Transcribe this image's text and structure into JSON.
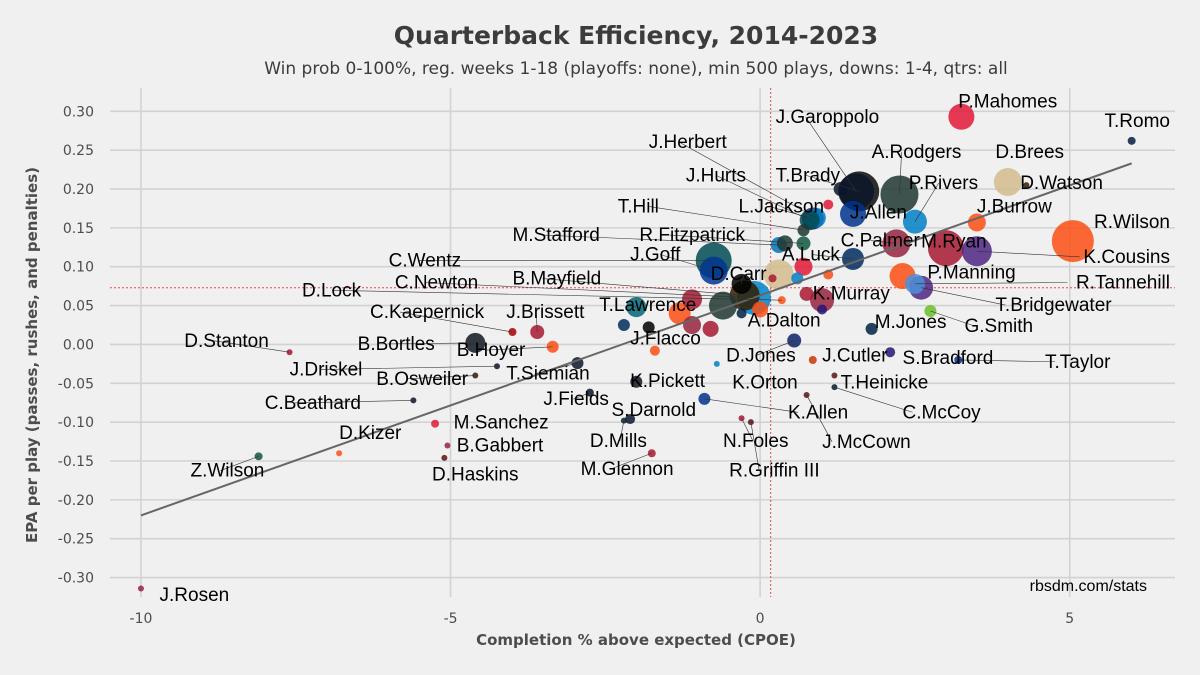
{
  "chart_data": {
    "type": "scatter",
    "title": "Quarterback Efficiency, 2014-2023",
    "subtitle": "Win prob 0-100%, reg. weeks 1-18 (playoffs: none), min 500 plays, downs: 1-4, qtrs: all",
    "xlabel": "Completion % above expected (CPOE)",
    "ylabel": "EPA per play (passes, rushes, and penalties)",
    "caption": "rbsdm.com/stats",
    "xlim": [
      -10.5,
      6.7
    ],
    "ylim": [
      -0.325,
      0.33
    ],
    "xticks": [
      -10,
      -5,
      0,
      5
    ],
    "yticks": [
      0.3,
      0.25,
      0.2,
      0.15,
      0.1,
      0.05,
      0.0,
      -0.05,
      -0.1,
      -0.15,
      -0.2,
      -0.25,
      -0.3
    ],
    "xtick_labels": [
      "-10",
      "-5",
      "0",
      "5"
    ],
    "ytick_labels": [
      "0.30",
      "0.25",
      "0.20",
      "0.15",
      "0.10",
      "0.05",
      "0.00",
      "-0.05",
      "-0.10",
      "-0.15",
      "-0.20",
      "-0.25",
      "-0.30"
    ],
    "reference_lines": {
      "x": 0.17,
      "y": 0.073,
      "color": "#e34a4a"
    },
    "trend_line": {
      "x": [
        -10,
        6
      ],
      "y": [
        -0.22,
        0.233
      ],
      "color": "#666666"
    },
    "points": [
      {
        "name": "P.Mahomes",
        "x": 3.25,
        "y": 0.293,
        "size": 13,
        "color": "#e31837",
        "label_x": 3.2,
        "label_y": 0.305
      },
      {
        "name": "T.Romo",
        "x": 6.0,
        "y": 0.262,
        "size": 4,
        "color": "#041e42",
        "label_x": 5.6,
        "label_y": 0.28
      },
      {
        "name": "J.Garoppolo",
        "x": 1.55,
        "y": 0.197,
        "size": 18,
        "color": "#0b162a",
        "label_x": 0.25,
        "label_y": 0.285
      },
      {
        "name": "A.Rodgers",
        "x": 2.25,
        "y": 0.193,
        "size": 19,
        "color": "#203731",
        "label_x": 1.8,
        "label_y": 0.24
      },
      {
        "name": "D.Brees",
        "x": 4.0,
        "y": 0.209,
        "size": 14,
        "color": "#d3bc8d",
        "label_x": 3.8,
        "label_y": 0.24
      },
      {
        "name": "D.Watson",
        "x": 4.3,
        "y": 0.205,
        "size": 3,
        "color": "#311d00",
        "label_x": 4.2,
        "label_y": 0.2
      },
      {
        "name": "J.Herbert",
        "x": 0.9,
        "y": 0.163,
        "size": 10,
        "color": "#0080c6",
        "label_x": -1.8,
        "label_y": 0.253
      },
      {
        "name": "T.Brady",
        "x": 1.6,
        "y": 0.197,
        "size": 20,
        "color": "#0a0a0a",
        "label_x": 0.25,
        "label_y": 0.21
      },
      {
        "name": "P.Rivers",
        "x": 2.5,
        "y": 0.158,
        "size": 12,
        "color": "#0080c6",
        "label_x": 2.4,
        "label_y": 0.2
      },
      {
        "name": "J.Hurts",
        "x": 0.8,
        "y": 0.16,
        "size": 10,
        "color": "#004c54",
        "label_x": -1.2,
        "label_y": 0.21
      },
      {
        "name": "L.Jackson",
        "x": 0.85,
        "y": 0.162,
        "size": 11,
        "color": "#241773",
        "label_x": -0.35,
        "label_y": 0.17
      },
      {
        "name": "J.Allen",
        "x": 1.5,
        "y": 0.168,
        "size": 13,
        "color": "#00338d",
        "label_x": 1.45,
        "label_y": 0.162
      },
      {
        "name": "J.Burrow",
        "x": 3.5,
        "y": 0.157,
        "size": 9,
        "color": "#fb4f14",
        "label_x": 3.5,
        "label_y": 0.17
      },
      {
        "name": "T.Hill",
        "x": 0.7,
        "y": 0.147,
        "size": 6,
        "color": "#203731",
        "label_x": -2.3,
        "label_y": 0.17
      },
      {
        "name": "R.Wilson",
        "x": 5.05,
        "y": 0.133,
        "size": 21,
        "color": "#fb4f14",
        "label_x": 5.0,
        "label_y": 0.15
      },
      {
        "name": "M.Stafford",
        "x": 0.3,
        "y": 0.128,
        "size": 8,
        "color": "#0076b6",
        "label_x": -4.0,
        "label_y": 0.133
      },
      {
        "name": "R.Fitzpatrick",
        "x": 0.7,
        "y": 0.13,
        "size": 7,
        "color": "#125740",
        "label_x": -1.95,
        "label_y": 0.133
      },
      {
        "name": "C.Palmer",
        "x": 2.2,
        "y": 0.13,
        "size": 14,
        "color": "#97233f",
        "label_x": 1.3,
        "label_y": 0.126
      },
      {
        "name": "M.Ryan",
        "x": 3.0,
        "y": 0.124,
        "size": 18,
        "color": "#a71930",
        "label_x": 2.6,
        "label_y": 0.125
      },
      {
        "name": "C.Wentz",
        "x": -0.75,
        "y": 0.108,
        "size": 18,
        "color": "#004c54",
        "label_x": -6.0,
        "label_y": 0.1
      },
      {
        "name": "K.Cousins",
        "x": 3.5,
        "y": 0.12,
        "size": 15,
        "color": "#4f2683",
        "label_x": 5.0,
        "label_y": 0.105
      },
      {
        "name": "A.Luck",
        "x": 1.5,
        "y": 0.11,
        "size": 11,
        "color": "#002c5f",
        "label_x": 0.35,
        "label_y": 0.108
      },
      {
        "name": "J.Goff",
        "x": -0.75,
        "y": 0.095,
        "size": 14,
        "color": "#003594",
        "label_x": -2.1,
        "label_y": 0.108
      },
      {
        "name": "D.Carr",
        "x": -0.3,
        "y": 0.078,
        "size": 10,
        "color": "#000000",
        "label_x": -0.8,
        "label_y": 0.083
      },
      {
        "name": "P.Manning",
        "x": 2.3,
        "y": 0.088,
        "size": 13,
        "color": "#fb4f14",
        "label_x": 2.7,
        "label_y": 0.085
      },
      {
        "name": "R.Tannehill",
        "x": 2.5,
        "y": 0.078,
        "size": 10,
        "color": "#4b92db",
        "label_x": 4.8,
        "label_y": 0.072
      },
      {
        "name": "C.Newton",
        "x": -0.1,
        "y": 0.06,
        "size": 17,
        "color": "#0085ca",
        "label_x": -5.9,
        "label_y": 0.072
      },
      {
        "name": "B.Mayfield",
        "x": -0.25,
        "y": 0.063,
        "size": 15,
        "color": "#311d00",
        "label_x": -4.0,
        "label_y": 0.077
      },
      {
        "name": "D.Lock",
        "x": 0.35,
        "y": 0.057,
        "size": 4,
        "color": "#fb4f14",
        "label_x": -7.4,
        "label_y": 0.062
      },
      {
        "name": "K.Murray",
        "x": 1.0,
        "y": 0.057,
        "size": 12,
        "color": "#97233f",
        "label_x": 0.85,
        "label_y": 0.058
      },
      {
        "name": "T.Bridgewater",
        "x": 2.6,
        "y": 0.073,
        "size": 12,
        "color": "#4f2683",
        "label_x": 3.8,
        "label_y": 0.043
      },
      {
        "name": "C.Kaepernick",
        "x": -4.0,
        "y": 0.016,
        "size": 4,
        "color": "#aa0000",
        "label_x": -6.3,
        "label_y": 0.034
      },
      {
        "name": "J.Brissett",
        "x": -3.6,
        "y": 0.016,
        "size": 7,
        "color": "#a71930",
        "label_x": -4.1,
        "label_y": 0.034
      },
      {
        "name": "T.Lawrence",
        "x": -2.0,
        "y": 0.048,
        "size": 10,
        "color": "#006778",
        "label_x": -2.6,
        "label_y": 0.043
      },
      {
        "name": "A.Dalton",
        "x": 0.0,
        "y": 0.045,
        "size": 8,
        "color": "#fb4f14",
        "label_x": -0.2,
        "label_y": 0.023
      },
      {
        "name": "G.Smith",
        "x": 2.75,
        "y": 0.043,
        "size": 6,
        "color": "#69be28",
        "label_x": 3.3,
        "label_y": 0.016
      },
      {
        "name": "M.Jones",
        "x": 1.8,
        "y": 0.02,
        "size": 6,
        "color": "#002244",
        "label_x": 1.85,
        "label_y": 0.021
      },
      {
        "name": "D.Stanton",
        "x": -7.6,
        "y": -0.01,
        "size": 3,
        "color": "#a71930",
        "label_x": -9.3,
        "label_y": -0.003
      },
      {
        "name": "B.Bortles",
        "x": -4.6,
        "y": 0.002,
        "size": 10,
        "color": "#101820",
        "label_x": -6.5,
        "label_y": -0.007
      },
      {
        "name": "B.Hoyer",
        "x": -3.35,
        "y": -0.003,
        "size": 6,
        "color": "#fb4f14",
        "label_x": -4.9,
        "label_y": -0.015
      },
      {
        "name": "J.Flacco",
        "x": -1.7,
        "y": -0.008,
        "size": 5,
        "color": "#fb4f14",
        "label_x": -2.1,
        "label_y": 0.0
      },
      {
        "name": "D.Jones",
        "x": 0.55,
        "y": 0.005,
        "size": 7,
        "color": "#0b2265",
        "label_x": -0.55,
        "label_y": -0.022
      },
      {
        "name": "J.Cutler",
        "x": 0.85,
        "y": -0.02,
        "size": 4,
        "color": "#c83803",
        "label_x": 1.0,
        "label_y": -0.022
      },
      {
        "name": "S.Bradford",
        "x": 2.1,
        "y": -0.01,
        "size": 5,
        "color": "#241773",
        "label_x": 2.3,
        "label_y": -0.025
      },
      {
        "name": "T.Taylor",
        "x": 3.2,
        "y": -0.02,
        "size": 4,
        "color": "#00338d",
        "label_x": 4.6,
        "label_y": -0.03
      },
      {
        "name": "J.Driskel",
        "x": -4.25,
        "y": -0.028,
        "size": 3,
        "color": "#0b162a",
        "label_x": -7.6,
        "label_y": -0.04
      },
      {
        "name": "T.Siemian",
        "x": -2.95,
        "y": -0.024,
        "size": 6,
        "color": "#0b162a",
        "label_x": -4.1,
        "label_y": -0.045
      },
      {
        "name": "B.Osweiler",
        "x": -4.6,
        "y": -0.04,
        "size": 3,
        "color": "#311d00",
        "label_x": -6.2,
        "label_y": -0.052
      },
      {
        "name": "K.Pickett",
        "x": -2.0,
        "y": -0.048,
        "size": 6,
        "color": "#101820",
        "label_x": -2.1,
        "label_y": -0.055
      },
      {
        "name": "K.Orton",
        "x": -0.7,
        "y": -0.025,
        "size": 3,
        "color": "#0080c6",
        "label_x": -0.45,
        "label_y": -0.057
      },
      {
        "name": "T.Heinicke",
        "x": 1.2,
        "y": -0.04,
        "size": 3,
        "color": "#5a1414",
        "label_x": 1.3,
        "label_y": -0.057
      },
      {
        "name": "C.Beathard",
        "x": -5.6,
        "y": -0.072,
        "size": 3,
        "color": "#0b162a",
        "label_x": -8.0,
        "label_y": -0.083
      },
      {
        "name": "J.Fields",
        "x": -2.75,
        "y": -0.062,
        "size": 4,
        "color": "#0b162a",
        "label_x": -3.5,
        "label_y": -0.078
      },
      {
        "name": "S.Darnold",
        "x": -2.1,
        "y": -0.096,
        "size": 5,
        "color": "#0b162a",
        "label_x": -2.4,
        "label_y": -0.092
      },
      {
        "name": "K.Allen",
        "x": -0.9,
        "y": -0.07,
        "size": 6,
        "color": "#00338d",
        "label_x": 0.45,
        "label_y": -0.095
      },
      {
        "name": "C.McCoy",
        "x": 1.2,
        "y": -0.055,
        "size": 3,
        "color": "#0b162a",
        "label_x": 2.3,
        "label_y": -0.095
      },
      {
        "name": "M.Sanchez",
        "x": -5.25,
        "y": -0.102,
        "size": 4,
        "color": "#e31837",
        "label_x": -4.95,
        "label_y": -0.108
      },
      {
        "name": "D.Kizer",
        "x": -6.8,
        "y": -0.14,
        "size": 3,
        "color": "#fb4f14",
        "label_x": -6.8,
        "label_y": -0.122
      },
      {
        "name": "D.Mills",
        "x": -2.2,
        "y": -0.098,
        "size": 3,
        "color": "#03202f",
        "label_x": -2.75,
        "label_y": -0.132
      },
      {
        "name": "N.Foles",
        "x": -0.3,
        "y": -0.095,
        "size": 3,
        "color": "#a5162f",
        "label_x": -0.6,
        "label_y": -0.132
      },
      {
        "name": "J.McCown",
        "x": 0.75,
        "y": -0.065,
        "size": 3,
        "color": "#5a1414",
        "label_x": 1.0,
        "label_y": -0.133
      },
      {
        "name": "B.Gabbert",
        "x": -5.05,
        "y": -0.13,
        "size": 3,
        "color": "#97233f",
        "label_x": -4.9,
        "label_y": -0.138
      },
      {
        "name": "Z.Wilson",
        "x": -8.1,
        "y": -0.144,
        "size": 4,
        "color": "#125740",
        "label_x": -9.2,
        "label_y": -0.17
      },
      {
        "name": "M.Glennon",
        "x": -1.75,
        "y": -0.14,
        "size": 4,
        "color": "#a71930",
        "label_x": -2.9,
        "label_y": -0.168
      },
      {
        "name": "R.Griffin III",
        "x": -0.15,
        "y": -0.1,
        "size": 3,
        "color": "#5a1414",
        "label_x": -0.5,
        "label_y": -0.17
      },
      {
        "name": "D.Haskins",
        "x": -5.1,
        "y": -0.146,
        "size": 3,
        "color": "#5a1414",
        "label_x": -5.3,
        "label_y": -0.175
      },
      {
        "name": "J.Rosen",
        "x": -10.0,
        "y": -0.314,
        "size": 3,
        "color": "#97233f",
        "label_x": -9.7,
        "label_y": -0.33
      }
    ],
    "unlabeled_points": [
      {
        "x": 1.3,
        "y": 0.2,
        "size": 7,
        "color": "#0b162a"
      },
      {
        "x": 0.4,
        "y": 0.13,
        "size": 8,
        "color": "#203731"
      },
      {
        "x": 1.1,
        "y": 0.18,
        "size": 5,
        "color": "#e31837"
      },
      {
        "x": 0.7,
        "y": 0.1,
        "size": 9,
        "color": "#e31837"
      },
      {
        "x": 1.1,
        "y": 0.09,
        "size": 5,
        "color": "#fb4f14"
      },
      {
        "x": 0.2,
        "y": 0.085,
        "size": 4,
        "color": "#a71930"
      },
      {
        "x": 0.3,
        "y": 0.09,
        "size": 15,
        "color": "#d3bc8d"
      },
      {
        "x": -0.6,
        "y": 0.05,
        "size": 14,
        "color": "#203731"
      },
      {
        "x": -1.3,
        "y": 0.04,
        "size": 11,
        "color": "#fb4f14"
      },
      {
        "x": -1.1,
        "y": 0.025,
        "size": 9,
        "color": "#97233f"
      },
      {
        "x": -0.8,
        "y": 0.02,
        "size": 8,
        "color": "#a71930"
      },
      {
        "x": -1.8,
        "y": 0.022,
        "size": 6,
        "color": "#000000"
      },
      {
        "x": -2.2,
        "y": 0.025,
        "size": 6,
        "color": "#002c5f"
      },
      {
        "x": -1.1,
        "y": 0.058,
        "size": 10,
        "color": "#a71930"
      },
      {
        "x": -0.3,
        "y": 0.04,
        "size": 5,
        "color": "#002244"
      },
      {
        "x": 0.75,
        "y": 0.065,
        "size": 7,
        "color": "#a71930"
      },
      {
        "x": 1.0,
        "y": 0.045,
        "size": 5,
        "color": "#241773"
      },
      {
        "x": 0.6,
        "y": 0.085,
        "size": 6,
        "color": "#0080c6"
      }
    ]
  }
}
